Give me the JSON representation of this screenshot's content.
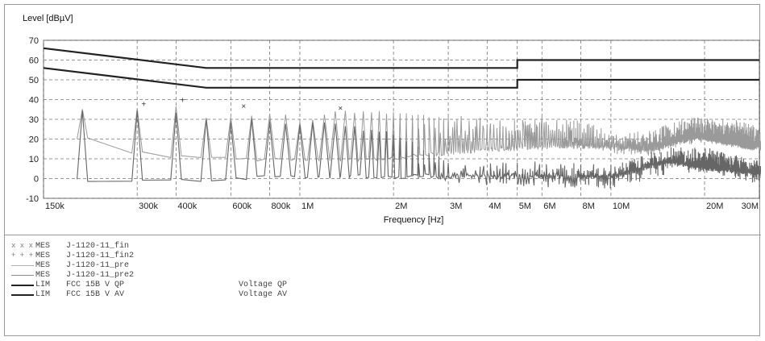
{
  "chart_data": {
    "type": "line",
    "ylabel": "Level [dBµV]",
    "xlabel": "Frequency [Hz]",
    "x_scale": "log",
    "xlim": [
      150000,
      30000000
    ],
    "ylim": [
      -10,
      70
    ],
    "grid": true,
    "yticks": [
      -10,
      0,
      10,
      20,
      30,
      40,
      50,
      60,
      70
    ],
    "xticks": [
      {
        "value": 150000,
        "label": "150k"
      },
      {
        "value": 300000,
        "label": "300k"
      },
      {
        "value": 400000,
        "label": "400k"
      },
      {
        "value": 600000,
        "label": "600k"
      },
      {
        "value": 800000,
        "label": "800k"
      },
      {
        "value": 1000000,
        "label": "1M"
      },
      {
        "value": 2000000,
        "label": "2M"
      },
      {
        "value": 3000000,
        "label": "3M"
      },
      {
        "value": 4000000,
        "label": "4M"
      },
      {
        "value": 5000000,
        "label": "5M"
      },
      {
        "value": 6000000,
        "label": "6M"
      },
      {
        "value": 8000000,
        "label": "8M"
      },
      {
        "value": 10000000,
        "label": "10M"
      },
      {
        "value": 20000000,
        "label": "20M"
      },
      {
        "value": 30000000,
        "label": "30M"
      }
    ],
    "limit_lines": [
      {
        "name": "FCC 15B V QP",
        "color": "#222222",
        "points": [
          [
            150000,
            66
          ],
          [
            500000,
            56
          ],
          [
            5000000,
            56
          ],
          [
            5000000,
            60
          ],
          [
            30000000,
            60
          ]
        ]
      },
      {
        "name": "FCC 15B V AV",
        "color": "#222222",
        "points": [
          [
            150000,
            56
          ],
          [
            500000,
            46
          ],
          [
            5000000,
            46
          ],
          [
            5000000,
            50
          ],
          [
            30000000,
            50
          ]
        ]
      }
    ],
    "series": [
      {
        "name": "J-1120-11_pre",
        "color": "#9a9a9a",
        "peaks": [
          [
            150000,
            41
          ],
          [
            200000,
            37
          ],
          [
            250000,
            36
          ],
          [
            310000,
            37
          ],
          [
            400000,
            38
          ],
          [
            540000,
            30
          ],
          [
            660000,
            33
          ],
          [
            850000,
            34
          ],
          [
            1000000,
            30
          ],
          [
            1350000,
            35
          ],
          [
            2000000,
            34
          ],
          [
            3000000,
            32
          ],
          [
            5000000,
            30
          ],
          [
            6000000,
            32
          ],
          [
            8000000,
            30
          ],
          [
            10000000,
            24
          ],
          [
            13000000,
            24
          ],
          [
            18000000,
            31
          ],
          [
            25000000,
            30
          ],
          [
            30000000,
            26
          ]
        ],
        "floor": [
          [
            150000,
            20
          ],
          [
            200000,
            20
          ],
          [
            250000,
            14
          ],
          [
            400000,
            10
          ],
          [
            1000000,
            8
          ],
          [
            2000000,
            9
          ],
          [
            3000000,
            12
          ],
          [
            6000000,
            15
          ],
          [
            10000000,
            15
          ],
          [
            13000000,
            13
          ],
          [
            18000000,
            20
          ],
          [
            30000000,
            14
          ]
        ]
      },
      {
        "name": "J-1120-11_pre2",
        "color": "#666666",
        "peaks": [
          [
            150000,
            33
          ],
          [
            200000,
            36
          ],
          [
            250000,
            36
          ],
          [
            310000,
            36
          ],
          [
            400000,
            36
          ],
          [
            540000,
            30
          ],
          [
            700000,
            33
          ],
          [
            900000,
            30
          ],
          [
            1200000,
            30
          ],
          [
            2000000,
            25
          ],
          [
            3000000,
            10
          ],
          [
            5000000,
            10
          ],
          [
            10000000,
            8
          ],
          [
            15000000,
            17
          ],
          [
            20000000,
            17
          ],
          [
            30000000,
            10
          ]
        ],
        "floor": [
          [
            150000,
            0
          ],
          [
            200000,
            -2
          ],
          [
            400000,
            -2
          ],
          [
            1000000,
            0
          ],
          [
            3000000,
            0
          ],
          [
            10000000,
            0
          ],
          [
            15000000,
            8
          ],
          [
            20000000,
            4
          ],
          [
            30000000,
            2
          ]
        ]
      }
    ],
    "markers": [
      {
        "series": "J-1120-11_fin",
        "symbol": "x",
        "points": [
          [
            660000,
            37
          ],
          [
            1350000,
            36
          ]
        ]
      },
      {
        "series": "J-1120-11_fin2",
        "symbol": "+",
        "points": [
          [
            315000,
            38
          ],
          [
            420000,
            40
          ]
        ]
      }
    ]
  },
  "legend": [
    {
      "marker": "x x x",
      "type": "MES",
      "name": "J-1120-11_fin",
      "desc": ""
    },
    {
      "marker": "+ + +",
      "type": "MES",
      "name": "J-1120-11_fin2",
      "desc": ""
    },
    {
      "marker": "",
      "type": "MES",
      "name": "J-1120-11_pre",
      "desc": "",
      "line_color": "#b0b0b0",
      "line_weight": "thin"
    },
    {
      "marker": "",
      "type": "MES",
      "name": "J-1120-11_pre2",
      "desc": "",
      "line_color": "#8a8a8a",
      "line_weight": "thin"
    },
    {
      "marker": "",
      "type": "LIM",
      "name": "FCC 15B V QP",
      "desc": "Voltage QP",
      "line_color": "#222222",
      "line_weight": "thick"
    },
    {
      "marker": "",
      "type": "LIM",
      "name": "FCC 15B V AV",
      "desc": "Voltage AV",
      "line_color": "#222222",
      "line_weight": "thick"
    }
  ]
}
